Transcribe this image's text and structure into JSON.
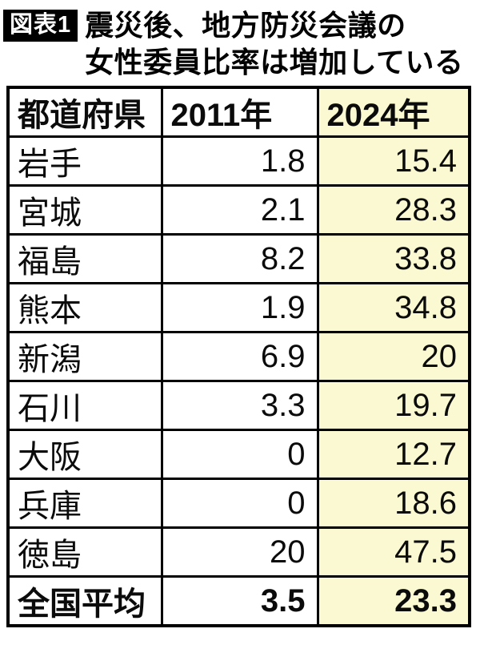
{
  "header": {
    "badge": "図表1",
    "title_line1": "震災後、地方防災会議の",
    "title_line2": "女性委員比率は増加している"
  },
  "colors": {
    "highlight": "#FAF9D2",
    "badge_bg": "#000000",
    "badge_text": "#ffffff",
    "border": "#000000"
  },
  "table": {
    "columns": [
      "都道府県",
      "2011年",
      "2024年"
    ],
    "rows": [
      {
        "pref": "岩手",
        "v2011": "1.8",
        "v2024": "15.4"
      },
      {
        "pref": "宮城",
        "v2011": "2.1",
        "v2024": "28.3"
      },
      {
        "pref": "福島",
        "v2011": "8.2",
        "v2024": "33.8"
      },
      {
        "pref": "熊本",
        "v2011": "1.9",
        "v2024": "34.8"
      },
      {
        "pref": "新潟",
        "v2011": "6.9",
        "v2024": "20"
      },
      {
        "pref": "石川",
        "v2011": "3.3",
        "v2024": "19.7"
      },
      {
        "pref": "大阪",
        "v2011": "0",
        "v2024": "12.7"
      },
      {
        "pref": "兵庫",
        "v2011": "0",
        "v2024": "18.6"
      },
      {
        "pref": "徳島",
        "v2011": "20",
        "v2024": "47.5"
      }
    ],
    "footer_row": {
      "pref": "全国平均",
      "v2011": "3.5",
      "v2024": "23.3"
    }
  },
  "chart_data": {
    "type": "table",
    "title": "震災後、地方防災会議の女性委員比率は増加している",
    "figure_label": "図表1",
    "columns": [
      "都道府県",
      "2011年",
      "2024年"
    ],
    "categories": [
      "岩手",
      "宮城",
      "福島",
      "熊本",
      "新潟",
      "石川",
      "大阪",
      "兵庫",
      "徳島",
      "全国平均"
    ],
    "series": [
      {
        "name": "2011年",
        "values": [
          1.8,
          2.1,
          8.2,
          1.9,
          6.9,
          3.3,
          0,
          0,
          20,
          3.5
        ]
      },
      {
        "name": "2024年",
        "values": [
          15.4,
          28.3,
          33.8,
          34.8,
          20,
          19.7,
          12.7,
          18.6,
          47.5,
          23.3
        ]
      }
    ],
    "highlighted_column": "2024年",
    "unit": "%"
  }
}
